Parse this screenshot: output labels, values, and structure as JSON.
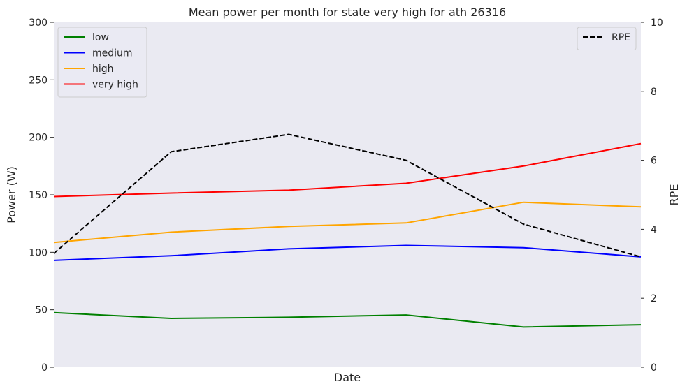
{
  "chart_data": {
    "type": "line",
    "title": "Mean power per month for state very high for ath 26316",
    "xlabel": "Date",
    "ylabel": "Power (W)",
    "y2label": "RPE",
    "ylim": [
      0,
      300
    ],
    "y2lim": [
      0,
      10
    ],
    "yticks": [
      "0",
      "50",
      "100",
      "150",
      "200",
      "250",
      "300"
    ],
    "y2ticks": [
      "0",
      "2",
      "4",
      "6",
      "8",
      "10"
    ],
    "x": [
      0,
      1,
      2,
      3,
      4,
      5
    ],
    "series": [
      {
        "name": "low",
        "axis": "left",
        "color": "#008000",
        "style": "solid",
        "values": [
          47.5,
          42.5,
          43.5,
          45.5,
          35.0,
          37.0
        ]
      },
      {
        "name": "medium",
        "axis": "left",
        "color": "#0000ff",
        "style": "solid",
        "values": [
          93.0,
          97.0,
          103.0,
          106.0,
          104.0,
          96.0
        ]
      },
      {
        "name": "high",
        "axis": "left",
        "color": "#ffa500",
        "style": "solid",
        "values": [
          108.5,
          117.5,
          122.5,
          125.5,
          143.5,
          139.5
        ]
      },
      {
        "name": "very high",
        "axis": "left",
        "color": "#ff0000",
        "style": "solid",
        "values": [
          148.5,
          151.5,
          154.0,
          160.0,
          175.0,
          194.5
        ]
      },
      {
        "name": "RPE",
        "axis": "right",
        "color": "#000000",
        "style": "dashed",
        "values": [
          3.3,
          6.25,
          6.75,
          6.0,
          4.15,
          3.2
        ]
      }
    ],
    "legend_left_position": "upper-left",
    "legend_right_position": "upper-right",
    "grid": false,
    "background": "#eaeaf2"
  }
}
